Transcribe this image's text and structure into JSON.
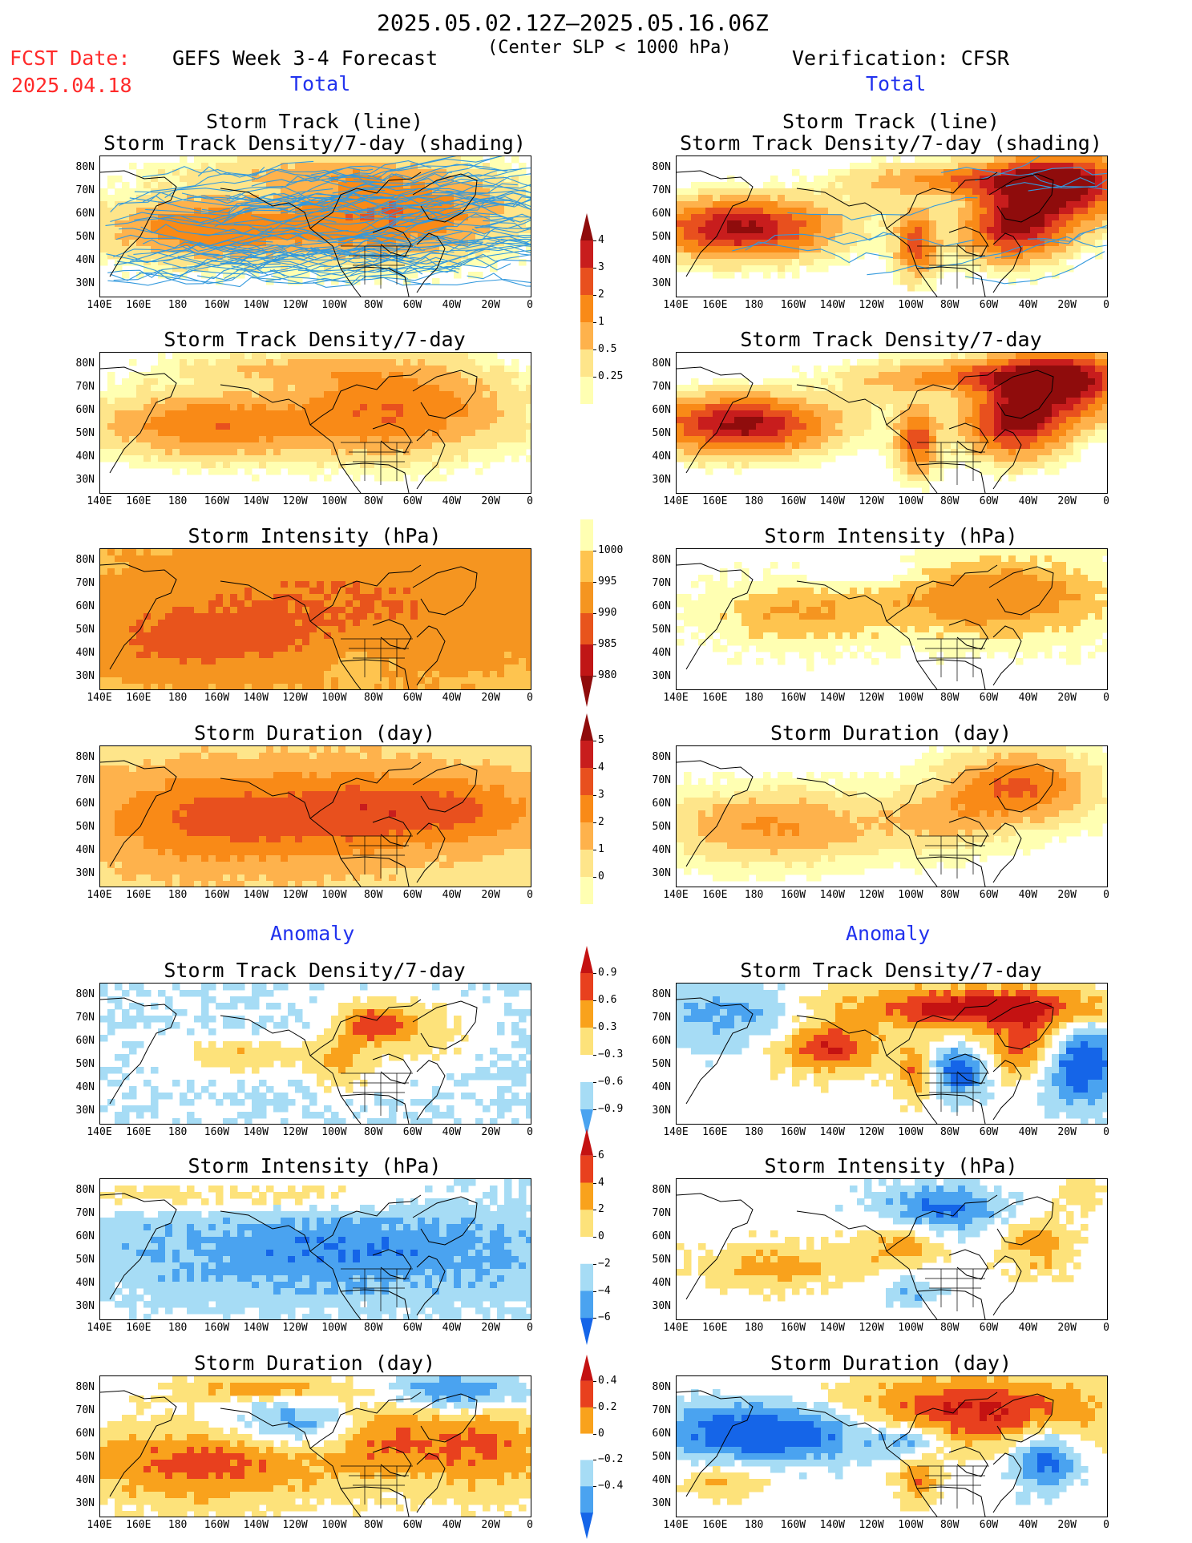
{
  "header": {
    "period": "2025.05.02.12Z–2025.05.16.06Z",
    "criterion": "(Center SLP < 1000 hPa)",
    "fcst_date_label": "FCST Date:",
    "fcst_date": "2025.04.18",
    "left_title": "GEFS Week 3-4 Forecast",
    "right_title": "Verification: CFSR",
    "total_label": "Total",
    "anomaly_label": "Anomaly"
  },
  "panel_titles": {
    "track_line": "Storm Track (line)",
    "track_shading": "Storm Track Density/7-day (shading)",
    "density": "Storm Track Density/7-day",
    "intensity": "Storm Intensity (hPa)",
    "duration": "Storm Duration (day)"
  },
  "axes": {
    "lat_labels": [
      "80N",
      "70N",
      "60N",
      "50N",
      "40N",
      "30N"
    ],
    "lon_labels": [
      "140E",
      "160E",
      "180",
      "160W",
      "140W",
      "120W",
      "100W",
      "80W",
      "60W",
      "40W",
      "20W",
      "0"
    ]
  },
  "colorbars": {
    "density_total": [
      "4",
      "3",
      "2",
      "1",
      "0.5",
      "0.25"
    ],
    "intensity_total": [
      "1000",
      "995",
      "990",
      "985",
      "980"
    ],
    "duration_total": [
      "5",
      "4",
      "3",
      "2",
      "1",
      "0"
    ],
    "density_anom": [
      "0.9",
      "0.6",
      "0.3",
      "−0.3",
      "−0.6",
      "−0.9"
    ],
    "intensity_anom": [
      "6",
      "4",
      "2",
      "0",
      "−2",
      "−4",
      "−6"
    ],
    "duration_anom": [
      "0.4",
      "0.2",
      "0",
      "−0.2",
      "−0.4"
    ]
  },
  "colors": {
    "seq_total": [
      "#ffffb2",
      "#fee58a",
      "#feb24c",
      "#f98a17",
      "#e8501e",
      "#c81d1d",
      "#8f0c0c"
    ],
    "seq_intensity": [
      "#ffffb2",
      "#fec44f",
      "#f59520",
      "#e8541c",
      "#c01616",
      "#8f0c0c"
    ],
    "div_anom": [
      "#1565e8",
      "#4aa3f0",
      "#a6dcf5",
      "#ffffff",
      "#fde27a",
      "#f9a21c",
      "#e8401e",
      "#c41212"
    ],
    "land_line": "#000000",
    "track_line": "#3399dd"
  }
}
